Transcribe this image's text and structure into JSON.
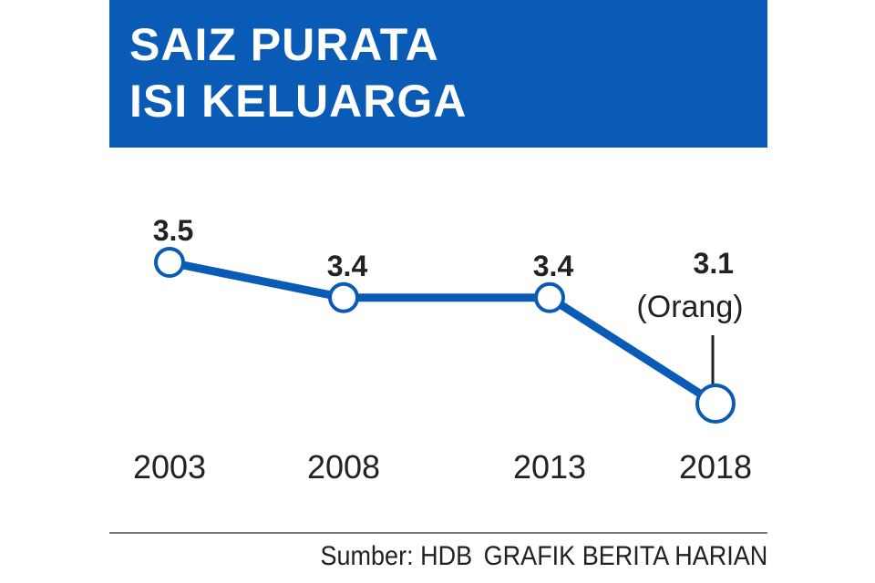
{
  "header": {
    "title_lines": [
      "SAIZ PURATA",
      "ISI KELUARGA"
    ]
  },
  "chart_data": {
    "type": "line",
    "title": "SAIZ PURATA ISI KELUARGA",
    "categories": [
      "2003",
      "2008",
      "2013",
      "2018"
    ],
    "values": [
      3.5,
      3.4,
      3.4,
      3.1
    ],
    "data_labels": [
      "3.5",
      "3.4",
      "3.4",
      "3.1"
    ],
    "unit_annotation": "(Orang)",
    "ylim": [
      3.1,
      3.5
    ],
    "grid": false,
    "colors": {
      "line": "#0a5bb5",
      "marker_fill": "#ffffff",
      "label": "#222222"
    }
  },
  "footer": {
    "source": "Sumber: HDB",
    "credit": "GRAFIK BERITA HARIAN"
  }
}
